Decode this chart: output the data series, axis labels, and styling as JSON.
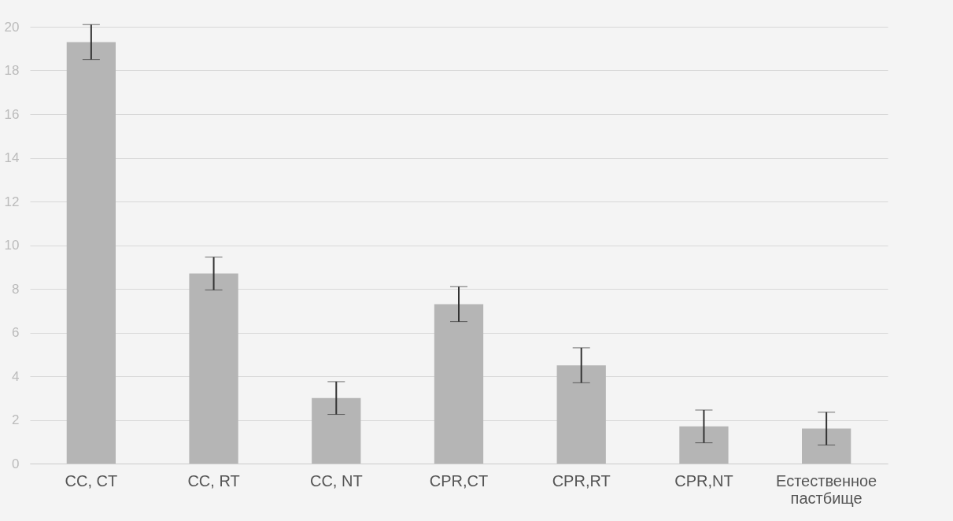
{
  "chart_data": {
    "type": "bar",
    "categories": [
      "CC, CT",
      "CC, RT",
      "CC, NT",
      "CPR,CT",
      "CPR,RT",
      "CPR,NT",
      "Естественное пастбище"
    ],
    "values": [
      19.3,
      8.7,
      3.0,
      7.3,
      4.5,
      1.7,
      1.6
    ],
    "errors": [
      0.8,
      0.75,
      0.75,
      0.8,
      0.8,
      0.75,
      0.75
    ],
    "color": "#b5b5b5",
    "ylim": [
      0,
      20
    ],
    "yticks": [
      0,
      2,
      4,
      6,
      8,
      10,
      12,
      14,
      16,
      18,
      20
    ],
    "grid": "y"
  }
}
